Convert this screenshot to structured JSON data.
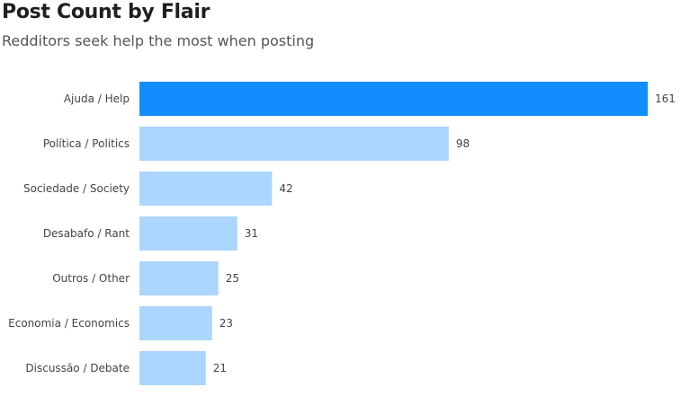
{
  "chart_data": {
    "type": "bar",
    "orientation": "horizontal",
    "title": "Post Count by Flair",
    "subtitle": "Redditors seek help the most when posting",
    "xlabel": "",
    "ylabel": "",
    "categories": [
      "Ajuda / Help",
      "Política / Politics",
      "Sociedade / Society",
      "Desabafo / Rant",
      "Outros / Other",
      "Economia / Economics",
      "Discussão / Debate"
    ],
    "values": [
      161,
      98,
      42,
      31,
      25,
      23,
      21
    ],
    "xlim": [
      0,
      161
    ],
    "grid": false,
    "legend": "none",
    "data_labels": true,
    "colors": {
      "highlight": "#118dff",
      "default": "#abd6ff"
    },
    "highlight_index": 0
  }
}
